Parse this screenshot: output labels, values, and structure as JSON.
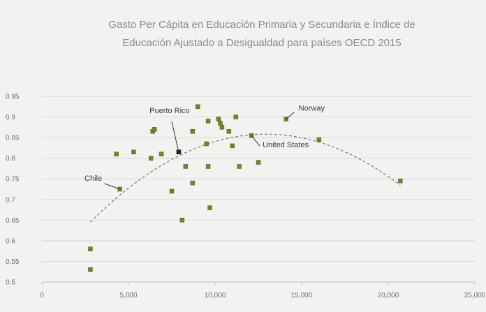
{
  "chart_data": {
    "type": "scatter",
    "title_lines": [
      "Gasto Per Cápita en Educación Primaria y Secundaria e Índice de",
      "Educación Ajustado a Desigualdad para países OECD 2015"
    ],
    "xlim": [
      0,
      25000
    ],
    "ylim": [
      0.5,
      0.95
    ],
    "x_ticks": [
      {
        "value": 0,
        "label": "0"
      },
      {
        "value": 5000,
        "label": "5,000"
      },
      {
        "value": 10000,
        "label": "10,000"
      },
      {
        "value": 15000,
        "label": "15,000"
      },
      {
        "value": 20000,
        "label": "20,000"
      },
      {
        "value": 25000,
        "label": "25,000"
      }
    ],
    "y_ticks": [
      {
        "value": 0.5,
        "label": "0.5"
      },
      {
        "value": 0.55,
        "label": "0.55"
      },
      {
        "value": 0.6,
        "label": "0.6"
      },
      {
        "value": 0.65,
        "label": "0.65"
      },
      {
        "value": 0.7,
        "label": "0.7"
      },
      {
        "value": 0.75,
        "label": "0.75"
      },
      {
        "value": 0.8,
        "label": "0.8"
      },
      {
        "value": 0.85,
        "label": "0.85"
      },
      {
        "value": 0.9,
        "label": "0.9"
      },
      {
        "value": 0.95,
        "label": "0.95"
      }
    ],
    "grid": "horizontal",
    "trendline": {
      "type": "polynomial",
      "x_range": [
        2800,
        20700
      ]
    },
    "points": [
      {
        "x": 2800,
        "y": 0.58
      },
      {
        "x": 2800,
        "y": 0.53
      },
      {
        "x": 4300,
        "y": 0.81
      },
      {
        "x": 4500,
        "y": 0.725
      },
      {
        "x": 5300,
        "y": 0.815
      },
      {
        "x": 6300,
        "y": 0.8
      },
      {
        "x": 6400,
        "y": 0.865
      },
      {
        "x": 6500,
        "y": 0.87
      },
      {
        "x": 6900,
        "y": 0.81
      },
      {
        "x": 7500,
        "y": 0.72
      },
      {
        "x": 7900,
        "y": 0.815
      },
      {
        "x": 8100,
        "y": 0.65
      },
      {
        "x": 8300,
        "y": 0.78
      },
      {
        "x": 8700,
        "y": 0.74
      },
      {
        "x": 8700,
        "y": 0.865
      },
      {
        "x": 9000,
        "y": 0.925
      },
      {
        "x": 9500,
        "y": 0.835
      },
      {
        "x": 9600,
        "y": 0.89
      },
      {
        "x": 9600,
        "y": 0.78
      },
      {
        "x": 9700,
        "y": 0.68
      },
      {
        "x": 10200,
        "y": 0.895
      },
      {
        "x": 10300,
        "y": 0.885
      },
      {
        "x": 10400,
        "y": 0.875
      },
      {
        "x": 10800,
        "y": 0.865
      },
      {
        "x": 11000,
        "y": 0.83
      },
      {
        "x": 11200,
        "y": 0.9
      },
      {
        "x": 11400,
        "y": 0.78
      },
      {
        "x": 12100,
        "y": 0.855
      },
      {
        "x": 12500,
        "y": 0.79
      },
      {
        "x": 14100,
        "y": 0.895
      },
      {
        "x": 16000,
        "y": 0.845
      },
      {
        "x": 20700,
        "y": 0.745
      }
    ],
    "annotations": [
      {
        "text": "Puerto Rico",
        "x": 7900,
        "y": 0.815
      },
      {
        "text": "Norway",
        "x": 14100,
        "y": 0.895
      },
      {
        "text": "United States",
        "x": 12100,
        "y": 0.855
      },
      {
        "text": "Chile",
        "x": 4500,
        "y": 0.725
      }
    ]
  }
}
